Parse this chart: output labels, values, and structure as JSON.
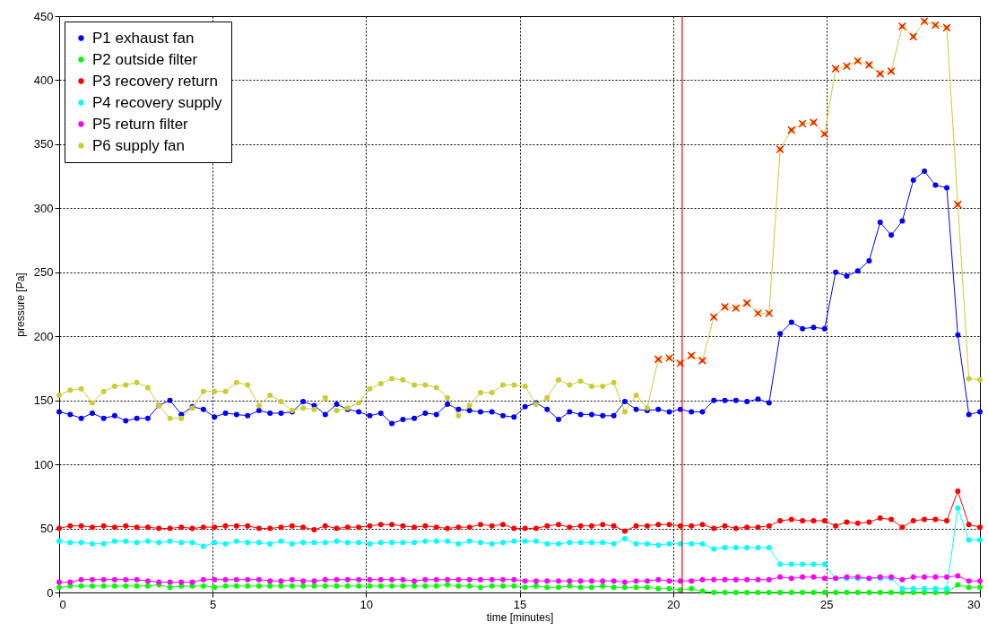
{
  "chart_data": {
    "type": "line",
    "xlabel": "time [minutes]",
    "ylabel": "pressure [Pa]",
    "x": [
      0,
      0.36,
      0.72,
      1.08,
      1.45,
      1.81,
      2.17,
      2.53,
      2.89,
      3.25,
      3.61,
      3.98,
      4.34,
      4.7,
      5.06,
      5.42,
      5.78,
      6.14,
      6.51,
      6.87,
      7.23,
      7.59,
      7.95,
      8.31,
      8.67,
      9.04,
      9.4,
      9.76,
      10.12,
      10.48,
      10.84,
      11.2,
      11.57,
      11.93,
      12.29,
      12.65,
      13.01,
      13.37,
      13.73,
      14.1,
      14.46,
      14.82,
      15.18,
      15.54,
      15.9,
      16.27,
      16.63,
      16.99,
      17.35,
      17.71,
      18.07,
      18.43,
      18.8,
      19.16,
      19.52,
      19.88,
      20.24,
      20.6,
      20.96,
      21.33,
      21.69,
      22.05,
      22.41,
      22.77,
      23.13,
      23.49,
      23.86,
      24.22,
      24.58,
      24.94,
      25.3,
      25.66,
      26.02,
      26.39,
      26.75,
      27.11,
      27.47,
      27.83,
      28.19,
      28.55,
      28.92,
      29.28,
      29.64,
      30
    ],
    "series": [
      {
        "name": "P1 exhaust fan",
        "color": "#0000ff",
        "values": [
          141,
          139,
          136,
          140,
          136,
          138,
          134,
          136,
          136,
          146,
          150,
          139,
          145,
          143,
          137,
          140,
          139,
          138,
          142,
          140,
          140,
          141,
          149,
          146,
          139,
          147,
          143,
          141,
          138,
          140,
          132,
          135,
          136,
          140,
          139,
          147,
          143,
          142,
          141,
          141,
          138,
          137,
          145,
          148,
          143,
          135,
          141,
          139,
          139,
          138,
          138,
          149,
          143,
          142,
          143,
          141,
          143,
          141,
          141,
          150,
          150,
          150,
          149,
          151,
          148,
          202,
          211,
          206,
          207,
          206,
          250,
          247,
          251,
          259,
          289,
          279,
          290,
          322,
          329,
          318,
          316,
          201,
          139,
          141
        ]
      },
      {
        "name": "P2 outside filter",
        "color": "#00ff00",
        "values": [
          4,
          5,
          5,
          5,
          5,
          5,
          5,
          5,
          5,
          6,
          4,
          5,
          5,
          5,
          4,
          5,
          5,
          5,
          5,
          5,
          5,
          5,
          5,
          5,
          5,
          5,
          5,
          5,
          5,
          5,
          5,
          5,
          5,
          5,
          5,
          6,
          5,
          5,
          4,
          5,
          5,
          5,
          4,
          5,
          4,
          4,
          5,
          4,
          4,
          5,
          4,
          4,
          4,
          4,
          3,
          3,
          2,
          3,
          1,
          0,
          0,
          0,
          0,
          0,
          0,
          0,
          0,
          0,
          0,
          0,
          0,
          0,
          0,
          0,
          0,
          0,
          0,
          0,
          0,
          0,
          0,
          6,
          4,
          4
        ]
      },
      {
        "name": "P3 recovery return",
        "color": "#ff0000",
        "values": [
          50,
          52,
          52,
          51,
          52,
          51,
          52,
          51,
          51,
          50,
          50,
          51,
          50,
          51,
          51,
          52,
          52,
          52,
          50,
          50,
          51,
          52,
          51,
          49,
          52,
          50,
          51,
          51,
          52,
          53,
          53,
          52,
          51,
          52,
          51,
          50,
          51,
          51,
          53,
          52,
          53,
          50,
          50,
          50,
          52,
          53,
          51,
          52,
          52,
          53,
          52,
          48,
          52,
          52,
          53,
          53,
          52,
          52,
          53,
          50,
          52,
          50,
          51,
          51,
          52,
          56,
          57,
          56,
          56,
          56,
          52,
          55,
          54,
          55,
          58,
          57,
          51,
          56,
          57,
          57,
          56,
          79,
          53,
          51
        ]
      },
      {
        "name": "P4 recovery supply",
        "color": "#00ffff",
        "values": [
          40,
          39,
          39,
          38,
          38,
          40,
          40,
          39,
          40,
          39,
          40,
          39,
          39,
          36,
          39,
          38,
          40,
          39,
          39,
          38,
          40,
          38,
          39,
          39,
          39,
          40,
          39,
          39,
          38,
          39,
          39,
          39,
          39,
          40,
          40,
          40,
          38,
          40,
          39,
          38,
          39,
          40,
          40,
          40,
          38,
          38,
          39,
          39,
          39,
          39,
          38,
          42,
          38,
          38,
          37,
          38,
          38,
          38,
          38,
          34,
          35,
          35,
          35,
          35,
          35,
          22,
          22,
          22,
          22,
          22,
          11,
          11,
          11,
          11,
          11,
          11,
          3,
          3,
          3,
          3,
          3,
          66,
          41,
          41
        ]
      },
      {
        "name": "P5 return filter",
        "color": "#ff00ff",
        "values": [
          8,
          8,
          10,
          10,
          10,
          10,
          10,
          10,
          9,
          8,
          8,
          8,
          8,
          10,
          10,
          10,
          10,
          10,
          10,
          9,
          9,
          10,
          9,
          9,
          10,
          10,
          10,
          10,
          10,
          10,
          10,
          10,
          9,
          10,
          10,
          10,
          10,
          10,
          10,
          10,
          10,
          10,
          9,
          9,
          9,
          9,
          9,
          9,
          9,
          9,
          9,
          8,
          9,
          9,
          10,
          9,
          9,
          9,
          10,
          10,
          10,
          10,
          10,
          10,
          10,
          12,
          11,
          12,
          12,
          11,
          11,
          12,
          12,
          11,
          12,
          12,
          10,
          12,
          12,
          12,
          12,
          13,
          9,
          9
        ]
      },
      {
        "name": "P6 supply fan",
        "color": "#cccc33",
        "values": [
          154,
          158,
          159,
          148,
          157,
          161,
          162,
          164,
          160,
          146,
          136,
          136,
          144,
          157,
          157,
          157,
          164,
          162,
          146,
          154,
          149,
          142,
          144,
          143,
          152,
          142,
          144,
          148,
          159,
          163,
          167,
          166,
          162,
          162,
          160,
          152,
          138,
          146,
          156,
          156,
          162,
          162,
          161,
          147,
          152,
          166,
          162,
          165,
          161,
          161,
          164,
          141,
          154,
          144,
          182,
          183,
          179,
          185,
          181,
          215,
          223,
          222,
          226,
          218,
          218,
          346,
          361,
          366,
          367,
          358,
          409,
          411,
          415,
          412,
          405,
          407,
          442,
          434,
          446,
          443,
          441,
          303,
          167,
          166
        ]
      },
      {
        "type": "scatter",
        "marker": "cross",
        "color": "#ff0000",
        "x": [
          19.52,
          19.88,
          20.24,
          20.6,
          20.96,
          21.33,
          21.69,
          22.05,
          22.41,
          22.77,
          23.13,
          23.49,
          23.86,
          24.22,
          24.58,
          24.94,
          25.3,
          25.66,
          26.02,
          26.39,
          26.75,
          27.11,
          27.47,
          27.83,
          28.19,
          28.55,
          28.92,
          29.28
        ],
        "values": [
          182,
          183,
          179,
          185,
          181,
          215,
          223,
          222,
          226,
          218,
          218,
          346,
          361,
          366,
          367,
          358,
          409,
          411,
          415,
          412,
          405,
          407,
          442,
          434,
          446,
          443,
          441,
          303
        ]
      }
    ],
    "xlim": [
      0,
      30
    ],
    "xticks": [
      0,
      5,
      10,
      15,
      20,
      25,
      30
    ],
    "ylim": [
      0,
      450
    ],
    "yticks": [
      0,
      50,
      100,
      150,
      200,
      250,
      300,
      350,
      400,
      450
    ],
    "ref_lines": [
      {
        "axis": "x",
        "value": 20.3,
        "color": "#ff0000"
      }
    ],
    "grid": true,
    "legend": "top left",
    "marker": "circle"
  }
}
